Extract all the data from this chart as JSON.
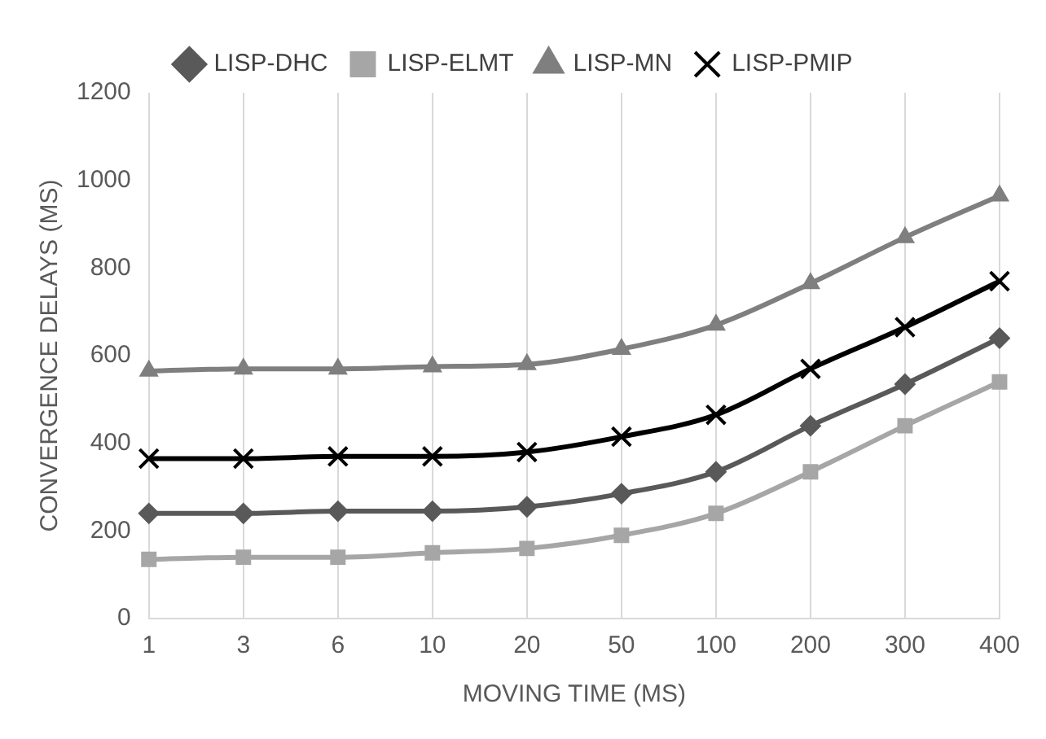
{
  "chart_data": {
    "type": "line",
    "xlabel": "MOVING TIME (MS)",
    "ylabel": "CONVERGENCE DELAYS (MS)",
    "categories": [
      "1",
      "3",
      "6",
      "10",
      "20",
      "50",
      "100",
      "200",
      "300",
      "400"
    ],
    "series": [
      {
        "name": "LISP-DHC",
        "color": "#595959",
        "marker": "diamond",
        "values": [
          240,
          240,
          245,
          245,
          255,
          285,
          335,
          440,
          535,
          640
        ]
      },
      {
        "name": "LISP-ELMT",
        "color": "#a6a6a6",
        "marker": "square",
        "values": [
          135,
          140,
          140,
          150,
          160,
          190,
          240,
          335,
          440,
          540
        ]
      },
      {
        "name": "LISP-MN",
        "color": "#7f7f7f",
        "marker": "triangle",
        "values": [
          565,
          570,
          570,
          575,
          580,
          615,
          670,
          765,
          870,
          965
        ]
      },
      {
        "name": "LISP-PMIP",
        "color": "#000000",
        "marker": "cross",
        "values": [
          365,
          365,
          370,
          370,
          380,
          415,
          465,
          570,
          665,
          770
        ]
      }
    ],
    "ylim": [
      0,
      1200
    ],
    "yticks": [
      0,
      200,
      400,
      600,
      800,
      1000,
      1200
    ],
    "grid": "x",
    "legend": "top"
  }
}
